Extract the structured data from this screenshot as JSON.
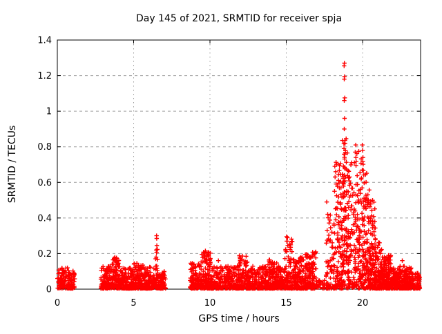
{
  "figure": {
    "background": "#ffffff"
  },
  "colors": {
    "marker": "#ff0000",
    "grid": "#9c9c9c",
    "axis": "#000000",
    "text": "#000000"
  },
  "chart_data": {
    "type": "scatter",
    "title": "Day 145 of 2021, SRMTID for receiver spja",
    "xlabel": "GPS time / hours",
    "ylabel": "SRMTID / TECUs",
    "xlim": [
      0,
      23.8
    ],
    "ylim": [
      0,
      1.4
    ],
    "xticks": {
      "values": [
        0,
        5,
        10,
        15,
        20
      ],
      "labels": [
        "0",
        "5",
        "10",
        "15",
        "20"
      ]
    },
    "yticks": {
      "values": [
        0,
        0.2,
        0.4,
        0.6,
        0.8,
        1.0,
        1.2,
        1.4
      ],
      "labels": [
        "0",
        "0.2",
        "0.4",
        "0.6",
        "0.8",
        "1",
        "1.2",
        "1.4"
      ]
    },
    "grid": true,
    "legend": "none",
    "marker": {
      "glyph": "plus",
      "color": "#ff0000",
      "size": 6.4,
      "stroke_width": 1.4
    },
    "series_name": "SRMTID",
    "seed": 20210145,
    "density_clusters": [
      {
        "x0": 0.0,
        "x1": 1.15,
        "ymin": 0.004,
        "ymax": 0.12,
        "n": 140,
        "bias": 2.0
      },
      {
        "x0": 2.85,
        "x1": 3.55,
        "ymin": 0.004,
        "ymax": 0.13,
        "n": 110,
        "bias": 2.0
      },
      {
        "x0": 3.55,
        "x1": 4.1,
        "ymin": 0.004,
        "ymax": 0.18,
        "n": 95,
        "bias": 2.1
      },
      {
        "x0": 4.1,
        "x1": 5.0,
        "ymin": 0.004,
        "ymax": 0.12,
        "n": 140,
        "bias": 2.2
      },
      {
        "x0": 5.0,
        "x1": 5.7,
        "ymin": 0.004,
        "ymax": 0.15,
        "n": 110,
        "bias": 2.2
      },
      {
        "x0": 5.7,
        "x1": 6.42,
        "ymin": 0.004,
        "ymax": 0.13,
        "n": 115,
        "bias": 2.2
      },
      {
        "x0": 6.44,
        "x1": 6.58,
        "ymin": 0.004,
        "ymax": 0.26,
        "n": 26,
        "bias": 1.5
      },
      {
        "x0": 6.58,
        "x1": 7.1,
        "ymin": 0.004,
        "ymax": 0.1,
        "n": 75,
        "bias": 2.0
      },
      {
        "x0": 8.7,
        "x1": 9.4,
        "ymin": 0.004,
        "ymax": 0.15,
        "n": 115,
        "bias": 2.0
      },
      {
        "x0": 9.4,
        "x1": 10.05,
        "ymin": 0.004,
        "ymax": 0.21,
        "n": 125,
        "bias": 2.1
      },
      {
        "x0": 10.05,
        "x1": 11.9,
        "ymin": 0.004,
        "ymax": 0.13,
        "n": 270,
        "bias": 2.2
      },
      {
        "x0": 11.9,
        "x1": 12.5,
        "ymin": 0.004,
        "ymax": 0.19,
        "n": 105,
        "bias": 2.0
      },
      {
        "x0": 12.5,
        "x1": 13.8,
        "ymin": 0.004,
        "ymax": 0.13,
        "n": 190,
        "bias": 2.2
      },
      {
        "x0": 13.8,
        "x1": 14.4,
        "ymin": 0.004,
        "ymax": 0.17,
        "n": 105,
        "bias": 2.0
      },
      {
        "x0": 14.4,
        "x1": 14.9,
        "ymin": 0.004,
        "ymax": 0.13,
        "n": 85,
        "bias": 2.0
      },
      {
        "x0": 14.9,
        "x1": 15.45,
        "ymin": 0.004,
        "ymax": 0.3,
        "n": 95,
        "bias": 2.4
      },
      {
        "x0": 15.45,
        "x1": 16.25,
        "ymin": 0.004,
        "ymax": 0.18,
        "n": 125,
        "bias": 2.2
      },
      {
        "x0": 16.25,
        "x1": 16.95,
        "ymin": 0.004,
        "ymax": 0.21,
        "n": 140,
        "bias": 2.0
      },
      {
        "x0": 16.95,
        "x1": 17.58,
        "ymin": 0.004,
        "ymax": 0.05,
        "n": 26,
        "bias": 2.0
      },
      {
        "x0": 17.6,
        "x1": 18.25,
        "ymin": 0.004,
        "ymax": 0.5,
        "n": 80,
        "bias": 2.0
      },
      {
        "x0": 18.25,
        "x1": 18.65,
        "ymin": 0.004,
        "ymax": 0.72,
        "n": 85,
        "bias": 1.7
      },
      {
        "x0": 18.65,
        "x1": 18.95,
        "ymin": 0.004,
        "ymax": 0.85,
        "n": 95,
        "bias": 1.5
      },
      {
        "x0": 18.95,
        "x1": 19.55,
        "ymin": 0.004,
        "ymax": 0.72,
        "n": 115,
        "bias": 1.6
      },
      {
        "x0": 19.55,
        "x1": 20.05,
        "ymin": 0.004,
        "ymax": 0.78,
        "n": 105,
        "bias": 1.7
      },
      {
        "x0": 20.05,
        "x1": 20.45,
        "ymin": 0.004,
        "ymax": 0.66,
        "n": 100,
        "bias": 1.7
      },
      {
        "x0": 20.45,
        "x1": 20.85,
        "ymin": 0.004,
        "ymax": 0.5,
        "n": 120,
        "bias": 2.2
      },
      {
        "x0": 20.85,
        "x1": 21.25,
        "ymin": 0.004,
        "ymax": 0.28,
        "n": 95,
        "bias": 2.0
      },
      {
        "x0": 21.25,
        "x1": 21.85,
        "ymin": 0.004,
        "ymax": 0.19,
        "n": 145,
        "bias": 2.0
      },
      {
        "x0": 21.85,
        "x1": 22.45,
        "ymin": 0.004,
        "ymax": 0.12,
        "n": 115,
        "bias": 2.0
      },
      {
        "x0": 22.45,
        "x1": 23.2,
        "ymin": 0.004,
        "ymax": 0.13,
        "n": 155,
        "bias": 1.8
      },
      {
        "x0": 23.2,
        "x1": 23.75,
        "ymin": 0.004,
        "ymax": 0.09,
        "n": 70,
        "bias": 1.8
      }
    ],
    "notable_points": [
      [
        3.82,
        0.17
      ],
      [
        6.5,
        0.3
      ],
      [
        6.51,
        0.285
      ],
      [
        6.52,
        0.245
      ],
      [
        6.48,
        0.22
      ],
      [
        6.5,
        0.205
      ],
      [
        9.7,
        0.215
      ],
      [
        9.75,
        0.205
      ],
      [
        10.55,
        0.16
      ],
      [
        15.02,
        0.295
      ],
      [
        15.06,
        0.27
      ],
      [
        15.1,
        0.245
      ],
      [
        15.25,
        0.235
      ],
      [
        17.65,
        0.49
      ],
      [
        18.16,
        0.55
      ],
      [
        18.2,
        0.63
      ],
      [
        18.24,
        0.66
      ],
      [
        18.18,
        0.69
      ],
      [
        18.78,
        0.79
      ],
      [
        18.8,
        0.9
      ],
      [
        18.82,
        0.96
      ],
      [
        18.8,
        1.06
      ],
      [
        18.83,
        1.075
      ],
      [
        18.8,
        1.18
      ],
      [
        18.82,
        1.195
      ],
      [
        18.79,
        1.255
      ],
      [
        18.81,
        1.27
      ],
      [
        19.0,
        0.765
      ],
      [
        19.52,
        0.77
      ],
      [
        19.55,
        0.81
      ],
      [
        19.56,
        0.74
      ],
      [
        19.98,
        0.81
      ],
      [
        20.0,
        0.78
      ],
      [
        20.02,
        0.74
      ],
      [
        21.7,
        0.19
      ],
      [
        21.72,
        0.175
      ],
      [
        22.6,
        0.16
      ]
    ]
  }
}
